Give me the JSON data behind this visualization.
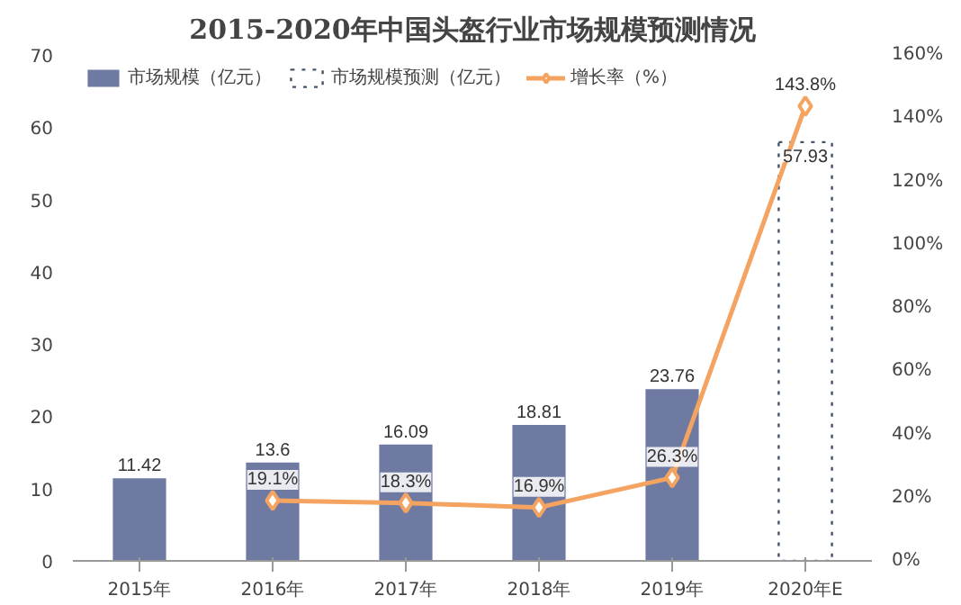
{
  "chart_data": {
    "type": "bar",
    "title": "2015-2020年中国头盔行业市场规模预测情况",
    "categories": [
      "2015年",
      "2016年",
      "2017年",
      "2018年",
      "2019年",
      "2020年E"
    ],
    "series": [
      {
        "name": "市场规模（亿元）",
        "color": "#6f7aa3",
        "values": [
          11.42,
          13.6,
          16.09,
          18.81,
          23.76,
          null
        ],
        "value_labels": [
          "11.42",
          "13.6",
          "16.09",
          "18.81",
          "23.76",
          null
        ]
      },
      {
        "name": "市场规模预测（亿元）",
        "color": "#44546a",
        "line_style": "dotted",
        "values": [
          null,
          null,
          null,
          null,
          null,
          57.93
        ],
        "value_labels": [
          null,
          null,
          null,
          null,
          null,
          "57.93"
        ]
      },
      {
        "name": "增长率（%）",
        "type": "line",
        "axis": "y2",
        "color": "#f4a460",
        "marker": "diamond",
        "values": [
          null,
          19.1,
          18.3,
          16.9,
          26.3,
          143.8
        ],
        "value_labels": [
          null,
          "19.1%",
          "18.3%",
          "16.9%",
          "26.3%",
          "143.8%"
        ]
      }
    ],
    "ylim": [
      0,
      70
    ],
    "yticks": [
      0,
      10,
      20,
      30,
      40,
      50,
      60,
      70
    ],
    "y2lim": [
      0,
      160
    ],
    "y2ticks": [
      {
        "value": 0,
        "label": "0%"
      },
      {
        "value": 20,
        "label": "20%"
      },
      {
        "value": 40,
        "label": "40%"
      },
      {
        "value": 60,
        "label": "60%"
      },
      {
        "value": 80,
        "label": "80%"
      },
      {
        "value": 100,
        "label": "100%"
      },
      {
        "value": 120,
        "label": "120%"
      },
      {
        "value": 140,
        "label": "140%"
      },
      {
        "value": 160,
        "label": "160%"
      }
    ],
    "legend": "top",
    "grid": false
  }
}
